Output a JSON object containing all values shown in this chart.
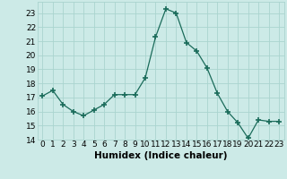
{
  "x": [
    0,
    1,
    2,
    3,
    4,
    5,
    6,
    7,
    8,
    9,
    10,
    11,
    12,
    13,
    14,
    15,
    16,
    17,
    18,
    19,
    20,
    21,
    22,
    23
  ],
  "y": [
    17.1,
    17.5,
    16.5,
    16.0,
    15.7,
    16.1,
    16.5,
    17.2,
    17.2,
    17.2,
    18.4,
    21.3,
    23.3,
    23.0,
    20.9,
    20.3,
    19.1,
    17.3,
    16.0,
    15.2,
    14.1,
    15.4,
    15.3,
    15.3
  ],
  "line_color": "#1a6b5a",
  "marker": "+",
  "marker_size": 4,
  "bg_color": "#cceae7",
  "grid_color": "#aad4cf",
  "xlabel": "Humidex (Indice chaleur)",
  "ylim": [
    14,
    23.8
  ],
  "xlim": [
    -0.5,
    23.5
  ],
  "yticks": [
    14,
    15,
    16,
    17,
    18,
    19,
    20,
    21,
    22,
    23
  ],
  "xticks": [
    0,
    1,
    2,
    3,
    4,
    5,
    6,
    7,
    8,
    9,
    10,
    11,
    12,
    13,
    14,
    15,
    16,
    17,
    18,
    19,
    20,
    21,
    22,
    23
  ],
  "tick_fontsize": 6.5,
  "label_fontsize": 7.5
}
